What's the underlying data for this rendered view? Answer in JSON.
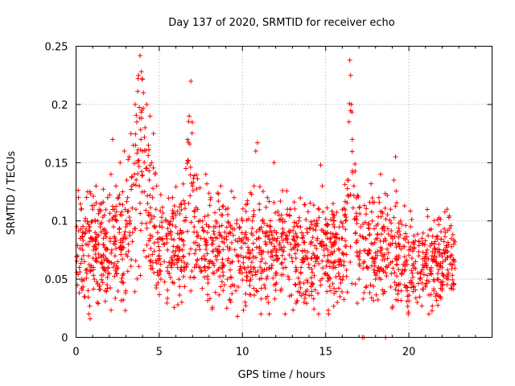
{
  "chart_data": {
    "type": "scatter",
    "title": "Day 137 of 2020, SRMTID for receiver echo",
    "xlabel": "GPS time / hours",
    "ylabel": "SRMTID / TECUs",
    "xlim": [
      0,
      25
    ],
    "ylim": [
      0,
      0.25
    ],
    "xticks": [
      0,
      5,
      10,
      15,
      20
    ],
    "xtick_labels": [
      "0",
      "5",
      "10",
      "15",
      "20"
    ],
    "yticks": [
      0,
      0.05,
      0.1,
      0.15,
      0.2,
      0.25
    ],
    "ytick_labels": [
      "0",
      "0.05",
      "0.1",
      "0.15",
      "0.2",
      "0.25"
    ],
    "grid": true,
    "marker": "+",
    "series": [
      {
        "name": "SRMTID",
        "color": "#ff0000",
        "points_note": "approximate reconstruction of ~2000 scattered samples",
        "points": [
          [
            0.05,
            0.095
          ],
          [
            0.1,
            0.07
          ],
          [
            0.15,
            0.12
          ],
          [
            0.2,
            0.06
          ],
          [
            0.25,
            0.085
          ],
          [
            0.3,
            0.11
          ],
          [
            0.35,
            0.05
          ],
          [
            0.4,
            0.075
          ],
          [
            0.45,
            0.09
          ],
          [
            0.5,
            0.065
          ],
          [
            0.55,
            0.1
          ],
          [
            0.6,
            0.08
          ],
          [
            0.65,
            0.055
          ],
          [
            0.7,
            0.125
          ],
          [
            0.75,
            0.07
          ],
          [
            0.8,
            0.095
          ],
          [
            0.85,
            0.016
          ],
          [
            0.9,
            0.06
          ],
          [
            0.95,
            0.085
          ],
          [
            1.0,
            0.11
          ],
          [
            1.05,
            0.075
          ],
          [
            1.1,
            0.05
          ],
          [
            1.15,
            0.09
          ],
          [
            1.2,
            0.13
          ],
          [
            1.25,
            0.065
          ],
          [
            1.3,
            0.1
          ],
          [
            1.35,
            0.08
          ],
          [
            1.4,
            0.045
          ],
          [
            1.45,
            0.095
          ],
          [
            1.5,
            0.07
          ],
          [
            1.55,
            0.115
          ],
          [
            1.6,
            0.06
          ],
          [
            1.65,
            0.085
          ],
          [
            1.7,
            0.105
          ],
          [
            1.75,
            0.04
          ],
          [
            1.8,
            0.075
          ],
          [
            1.85,
            0.09
          ],
          [
            1.9,
            0.12
          ],
          [
            1.95,
            0.065
          ],
          [
            2.0,
            0.1
          ],
          [
            2.05,
            0.085
          ],
          [
            2.1,
            0.14
          ],
          [
            2.15,
            0.075
          ],
          [
            2.2,
            0.17
          ],
          [
            2.25,
            0.095
          ],
          [
            2.3,
            0.11
          ],
          [
            2.35,
            0.08
          ],
          [
            2.4,
            0.13
          ],
          [
            2.45,
            0.1
          ],
          [
            2.5,
            0.065
          ],
          [
            2.55,
            0.12
          ],
          [
            2.6,
            0.09
          ],
          [
            2.65,
            0.15
          ],
          [
            2.7,
            0.075
          ],
          [
            2.75,
            0.105
          ],
          [
            2.8,
            0.125
          ],
          [
            2.85,
            0.085
          ],
          [
            2.9,
            0.16
          ],
          [
            2.95,
            0.11
          ],
          [
            3.0,
            0.095
          ],
          [
            3.05,
            0.135
          ],
          [
            3.1,
            0.12
          ],
          [
            3.15,
            0.08
          ],
          [
            3.2,
            0.155
          ],
          [
            3.25,
            0.1
          ],
          [
            3.3,
            0.175
          ],
          [
            3.35,
            0.13
          ],
          [
            3.4,
            0.09
          ],
          [
            3.45,
            0.165
          ],
          [
            3.5,
            0.14
          ],
          [
            3.55,
            0.2
          ],
          [
            3.6,
            0.11
          ],
          [
            3.65,
            0.185
          ],
          [
            3.7,
            0.15
          ],
          [
            3.75,
            0.225
          ],
          [
            3.8,
            0.13
          ],
          [
            3.85,
            0.242
          ],
          [
            3.9,
            0.17
          ],
          [
            3.95,
            0.195
          ],
          [
            4.0,
            0.16
          ],
          [
            4.05,
            0.21
          ],
          [
            4.1,
            0.125
          ],
          [
            4.15,
            0.18
          ],
          [
            4.2,
            0.145
          ],
          [
            4.25,
            0.2
          ],
          [
            4.3,
            0.115
          ],
          [
            4.35,
            0.165
          ],
          [
            4.4,
            0.135
          ],
          [
            4.45,
            0.19
          ],
          [
            4.5,
            0.105
          ],
          [
            4.55,
            0.15
          ],
          [
            4.6,
            0.12
          ],
          [
            4.65,
            0.175
          ],
          [
            4.7,
            0.095
          ],
          [
            4.75,
            0.14
          ],
          [
            4.8,
            0.11
          ],
          [
            4.85,
            0.13
          ],
          [
            4.9,
            0.09
          ],
          [
            5.0,
            0.07
          ],
          [
            5.1,
            0.05
          ],
          [
            5.2,
            0.085
          ],
          [
            5.3,
            0.065
          ],
          [
            5.4,
            0.1
          ],
          [
            5.5,
            0.075
          ],
          [
            5.6,
            0.055
          ],
          [
            5.7,
            0.09
          ],
          [
            5.8,
            0.12
          ],
          [
            5.9,
            0.07
          ],
          [
            6.0,
            0.095
          ],
          [
            6.1,
            0.06
          ],
          [
            6.2,
            0.085
          ],
          [
            6.3,
            0.115
          ],
          [
            6.4,
            0.075
          ],
          [
            6.5,
            0.1
          ],
          [
            6.6,
            0.145
          ],
          [
            6.7,
            0.17
          ],
          [
            6.8,
            0.19
          ],
          [
            6.9,
            0.22
          ],
          [
            7.0,
            0.13
          ],
          [
            7.1,
            0.095
          ],
          [
            7.2,
            0.075
          ],
          [
            7.3,
            0.11
          ],
          [
            7.4,
            0.06
          ],
          [
            7.5,
            0.085
          ],
          [
            7.6,
            0.1
          ],
          [
            7.7,
            0.07
          ],
          [
            7.8,
            0.14
          ],
          [
            7.9,
            0.09
          ],
          [
            8.0,
            0.065
          ],
          [
            8.1,
            0.12
          ],
          [
            8.2,
            0.08
          ],
          [
            8.3,
            0.055
          ],
          [
            8.4,
            0.1
          ],
          [
            8.5,
            0.075
          ],
          [
            8.6,
            0.09
          ],
          [
            8.7,
            0.13
          ],
          [
            8.8,
            0.06
          ],
          [
            8.9,
            0.085
          ],
          [
            9.0,
            0.11
          ],
          [
            9.1,
            0.05
          ],
          [
            9.2,
            0.075
          ],
          [
            9.3,
            0.095
          ],
          [
            9.4,
            0.065
          ],
          [
            9.5,
            0.12
          ],
          [
            9.6,
            0.04
          ],
          [
            9.7,
            0.018
          ],
          [
            9.8,
            0.085
          ],
          [
            9.9,
            0.07
          ],
          [
            10.0,
            0.1
          ],
          [
            10.1,
            0.06
          ],
          [
            10.2,
            0.09
          ],
          [
            10.3,
            0.115
          ],
          [
            10.4,
            0.075
          ],
          [
            10.5,
            0.05
          ],
          [
            10.6,
            0.1
          ],
          [
            10.7,
            0.13
          ],
          [
            10.8,
            0.16
          ],
          [
            10.9,
            0.167
          ],
          [
            11.0,
            0.085
          ],
          [
            11.1,
            0.065
          ],
          [
            11.2,
            0.1
          ],
          [
            11.3,
            0.045
          ],
          [
            11.4,
            0.08
          ],
          [
            11.5,
            0.12
          ],
          [
            11.6,
            0.06
          ],
          [
            11.7,
            0.095
          ],
          [
            11.8,
            0.07
          ],
          [
            11.9,
            0.15
          ],
          [
            12.0,
            0.055
          ],
          [
            12.1,
            0.085
          ],
          [
            12.2,
            0.105
          ],
          [
            12.3,
            0.04
          ],
          [
            12.4,
            0.075
          ],
          [
            12.5,
            0.09
          ],
          [
            12.6,
            0.06
          ],
          [
            12.7,
            0.11
          ],
          [
            12.8,
            0.05
          ],
          [
            12.9,
            0.08
          ],
          [
            13.0,
            0.065
          ],
          [
            13.1,
            0.095
          ],
          [
            13.2,
            0.045
          ],
          [
            13.3,
            0.075
          ],
          [
            13.4,
            0.1
          ],
          [
            13.5,
            0.055
          ],
          [
            13.6,
            0.085
          ],
          [
            13.7,
            0.03
          ],
          [
            13.8,
            0.07
          ],
          [
            13.9,
            0.09
          ],
          [
            14.0,
            0.06
          ],
          [
            14.1,
            0.08
          ],
          [
            14.2,
            0.045
          ],
          [
            14.3,
            0.1
          ],
          [
            14.4,
            0.065
          ],
          [
            14.5,
            0.085
          ],
          [
            14.6,
            0.11
          ],
          [
            14.7,
            0.148
          ],
          [
            14.8,
            0.13
          ],
          [
            14.9,
            0.075
          ],
          [
            15.0,
            0.055
          ],
          [
            15.1,
            0.09
          ],
          [
            15.2,
            0.065
          ],
          [
            15.3,
            0.04
          ],
          [
            15.4,
            0.08
          ],
          [
            15.5,
            0.1
          ],
          [
            15.6,
            0.06
          ],
          [
            15.7,
            0.03
          ],
          [
            15.8,
            0.075
          ],
          [
            15.9,
            0.05
          ],
          [
            16.0,
            0.085
          ],
          [
            16.1,
            0.065
          ],
          [
            16.2,
            0.1
          ],
          [
            16.3,
            0.135
          ],
          [
            16.4,
            0.185
          ],
          [
            16.45,
            0.238
          ],
          [
            16.5,
            0.225
          ],
          [
            16.55,
            0.2
          ],
          [
            16.6,
            0.17
          ],
          [
            16.7,
            0.13
          ],
          [
            16.8,
            0.09
          ],
          [
            16.9,
            0.07
          ],
          [
            17.0,
            0.05
          ],
          [
            17.1,
            0.095
          ],
          [
            17.2,
            0.0
          ],
          [
            17.3,
            0.0
          ],
          [
            17.4,
            0.085
          ],
          [
            17.5,
            0.06
          ],
          [
            17.6,
            0.075
          ],
          [
            17.7,
            0.045
          ],
          [
            17.8,
            0.1
          ],
          [
            17.9,
            0.065
          ],
          [
            18.0,
            0.05
          ],
          [
            18.1,
            0.085
          ],
          [
            18.2,
            0.12
          ],
          [
            18.3,
            0.14
          ],
          [
            18.4,
            0.07
          ],
          [
            18.5,
            0.095
          ],
          [
            18.6,
            0.0
          ],
          [
            18.7,
            0.06
          ],
          [
            18.8,
            0.08
          ],
          [
            18.9,
            0.11
          ],
          [
            19.0,
            0.065
          ],
          [
            19.1,
            0.135
          ],
          [
            19.2,
            0.155
          ],
          [
            19.3,
            0.09
          ],
          [
            19.4,
            0.07
          ],
          [
            19.5,
            0.1
          ],
          [
            19.6,
            0.055
          ],
          [
            19.7,
            0.085
          ],
          [
            19.8,
            0.065
          ],
          [
            19.9,
            0.04
          ],
          [
            20.0,
            0.075
          ],
          [
            20.1,
            0.095
          ],
          [
            20.2,
            0.055
          ],
          [
            20.3,
            0.08
          ],
          [
            20.4,
            0.065
          ],
          [
            20.5,
            0.03
          ],
          [
            20.6,
            0.07
          ],
          [
            20.7,
            0.05
          ],
          [
            20.8,
            0.085
          ],
          [
            20.9,
            0.06
          ],
          [
            21.0,
            0.045
          ],
          [
            21.1,
            0.075
          ],
          [
            21.2,
            0.02
          ],
          [
            21.3,
            0.055
          ],
          [
            21.4,
            0.07
          ],
          [
            21.5,
            0.04
          ],
          [
            21.6,
            0.065
          ],
          [
            21.7,
            0.05
          ],
          [
            21.8,
            0.08
          ],
          [
            21.9,
            0.035
          ],
          [
            22.0,
            0.06
          ],
          [
            22.1,
            0.075
          ],
          [
            22.2,
            0.09
          ],
          [
            22.3,
            0.11
          ],
          [
            22.4,
            0.055
          ],
          [
            22.5,
            0.07
          ],
          [
            22.6,
            0.045
          ],
          [
            22.7,
            0.08
          ],
          [
            22.75,
            0.065
          ]
        ]
      }
    ]
  }
}
